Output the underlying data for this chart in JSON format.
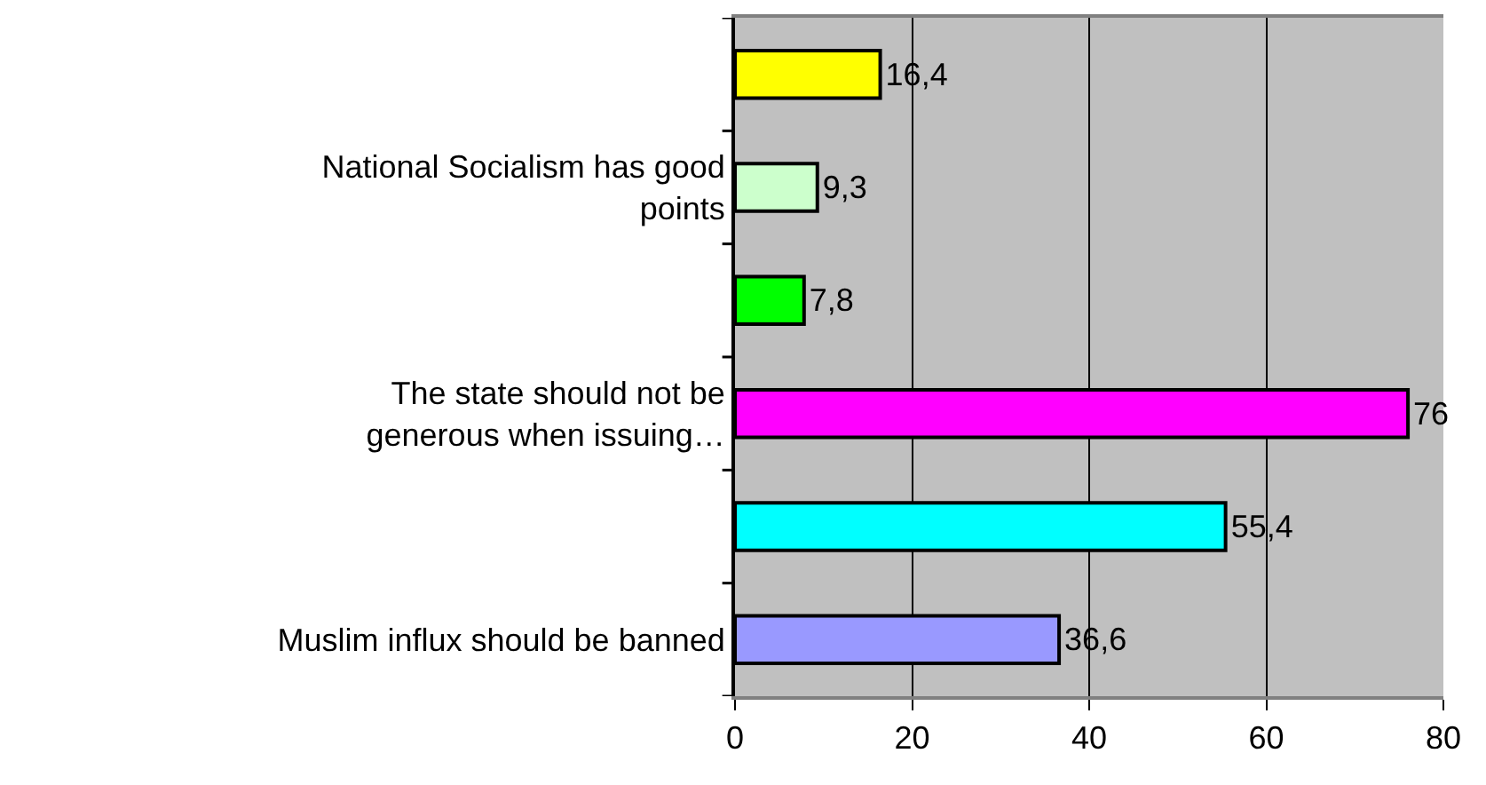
{
  "chart_data": {
    "type": "bar",
    "orientation": "horizontal",
    "categories": [
      null,
      "National Socialism has good points",
      null,
      "The state should not be generous when issuing…",
      null,
      "Muslim influx should be banned"
    ],
    "values": [
      16.4,
      9.3,
      7.8,
      76,
      55.4,
      36.6
    ],
    "value_labels": [
      "16,4",
      "9,3",
      "7,8",
      "76",
      "55,4",
      "36,6"
    ],
    "colors": [
      "#ffff00",
      "#ccffcc",
      "#00ff00",
      "#ff00ff",
      "#00ffff",
      "#9999ff"
    ],
    "xlim": [
      0,
      80
    ],
    "xticks": [
      0,
      20,
      40,
      60,
      80
    ],
    "grid": "x",
    "legend": false
  }
}
